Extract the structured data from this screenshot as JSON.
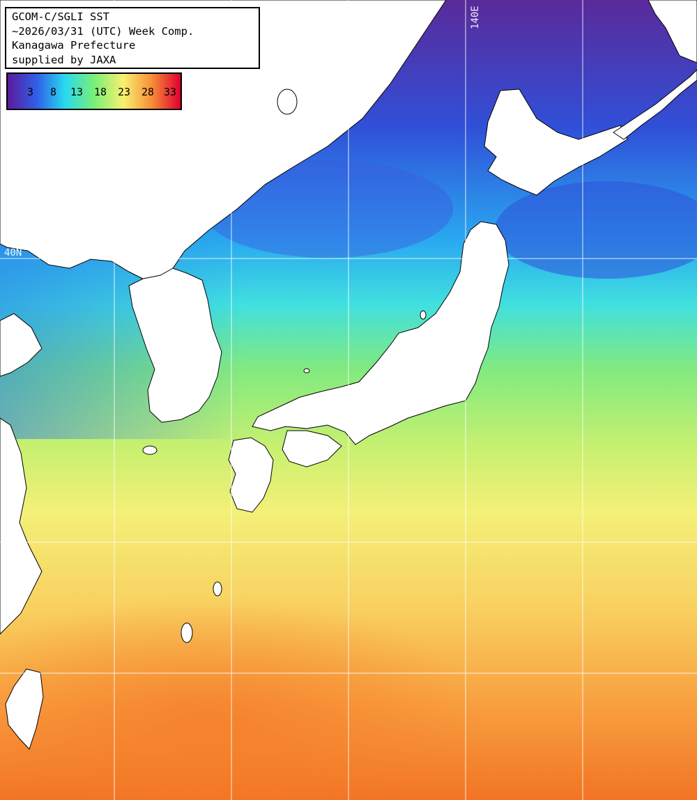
{
  "map": {
    "header_lines": [
      "GCOM-C/SGLI SST",
      "~2026/03/31 (UTC) Week Comp.",
      "Kanagawa Prefecture",
      "supplied by JAXA"
    ],
    "legend": {
      "ticks": [
        "3",
        "8",
        "13",
        "18",
        "23",
        "28",
        "33"
      ],
      "colors": [
        "#5b1a9c",
        "#3060e8",
        "#28d8f0",
        "#78f078",
        "#f8f070",
        "#f89038",
        "#e00030"
      ]
    },
    "grid_labels": {
      "lon": "140E",
      "lat": "40N"
    },
    "colors": {
      "land": "#ffffff",
      "coast": "#000000",
      "grid": "#ffffff"
    }
  }
}
